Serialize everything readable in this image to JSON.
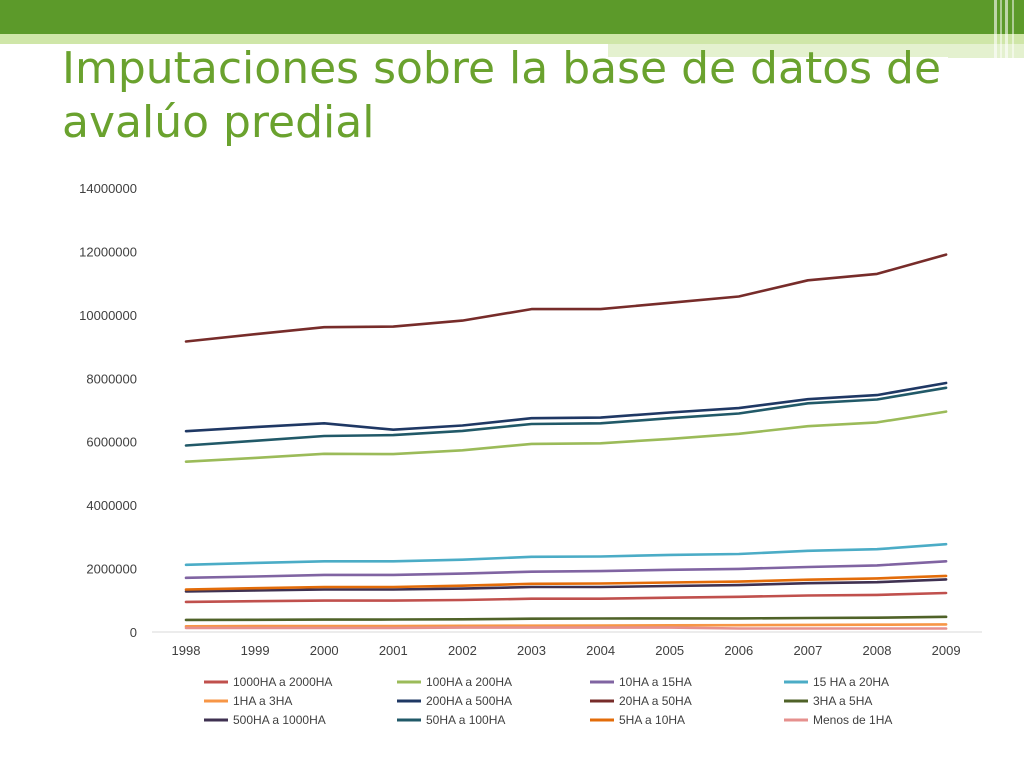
{
  "slide": {
    "title": "Imputaciones sobre la base de datos de avalúo predial"
  },
  "chart_data": {
    "type": "line",
    "x": [
      "1998",
      "1999",
      "2000",
      "2001",
      "2002",
      "2003",
      "2004",
      "2005",
      "2006",
      "2007",
      "2008",
      "2009"
    ],
    "ylim": [
      0,
      14000000
    ],
    "yticks": [
      "0",
      "2000000",
      "4000000",
      "6000000",
      "8000000",
      "10000000",
      "12000000",
      "14000000"
    ],
    "grid": false,
    "legend_position": "bottom",
    "series": [
      {
        "name": "1000HA a 2000HA",
        "color": "#c0504d",
        "values": [
          950000,
          970000,
          990000,
          990000,
          1010000,
          1050000,
          1050000,
          1080000,
          1110000,
          1150000,
          1170000,
          1230000
        ]
      },
      {
        "name": "100HA a 200HA",
        "color": "#9bbb59",
        "values": [
          5370000,
          5490000,
          5620000,
          5610000,
          5730000,
          5930000,
          5950000,
          6090000,
          6250000,
          6490000,
          6610000,
          6950000
        ]
      },
      {
        "name": "10HA a 15HA",
        "color": "#8064a2",
        "values": [
          1710000,
          1750000,
          1800000,
          1800000,
          1840000,
          1900000,
          1920000,
          1960000,
          1990000,
          2050000,
          2100000,
          2230000
        ]
      },
      {
        "name": "15 HA a 20HA",
        "color": "#4bacc6",
        "values": [
          2120000,
          2180000,
          2230000,
          2230000,
          2280000,
          2370000,
          2380000,
          2430000,
          2460000,
          2560000,
          2610000,
          2770000
        ]
      },
      {
        "name": "1HA a 3HA",
        "color": "#f79646",
        "values": [
          180000,
          185000,
          190000,
          190000,
          195000,
          200000,
          205000,
          210000,
          215000,
          225000,
          230000,
          240000
        ]
      },
      {
        "name": "200HA a 500HA",
        "color": "#1f3864",
        "values": [
          6330000,
          6460000,
          6580000,
          6380000,
          6510000,
          6740000,
          6760000,
          6920000,
          7060000,
          7340000,
          7470000,
          7850000
        ]
      },
      {
        "name": "20HA a 50HA",
        "color": "#772c2a",
        "values": [
          9160000,
          9390000,
          9610000,
          9630000,
          9820000,
          10180000,
          10180000,
          10380000,
          10580000,
          11090000,
          11290000,
          11900000
        ]
      },
      {
        "name": "3HA a 5HA",
        "color": "#4f6228",
        "values": [
          380000,
          385000,
          390000,
          395000,
          400000,
          420000,
          425000,
          430000,
          430000,
          440000,
          450000,
          480000
        ]
      },
      {
        "name": "500HA a 1000HA",
        "color": "#3f3151",
        "values": [
          1280000,
          1310000,
          1340000,
          1340000,
          1370000,
          1420000,
          1420000,
          1450000,
          1480000,
          1540000,
          1570000,
          1660000
        ]
      },
      {
        "name": "50HA a 100HA",
        "color": "#215968",
        "values": [
          5880000,
          6030000,
          6180000,
          6210000,
          6340000,
          6560000,
          6580000,
          6740000,
          6890000,
          7210000,
          7330000,
          7700000
        ]
      },
      {
        "name": "5HA a 10HA",
        "color": "#e36c09",
        "values": [
          1340000,
          1380000,
          1420000,
          1420000,
          1460000,
          1520000,
          1530000,
          1560000,
          1590000,
          1650000,
          1690000,
          1770000
        ]
      },
      {
        "name": "Menos de 1HA",
        "color": "#e6908e",
        "values": [
          130000,
          130000,
          130000,
          130000,
          140000,
          140000,
          140000,
          140000,
          110000,
          110000,
          110000,
          110000
        ]
      }
    ]
  }
}
